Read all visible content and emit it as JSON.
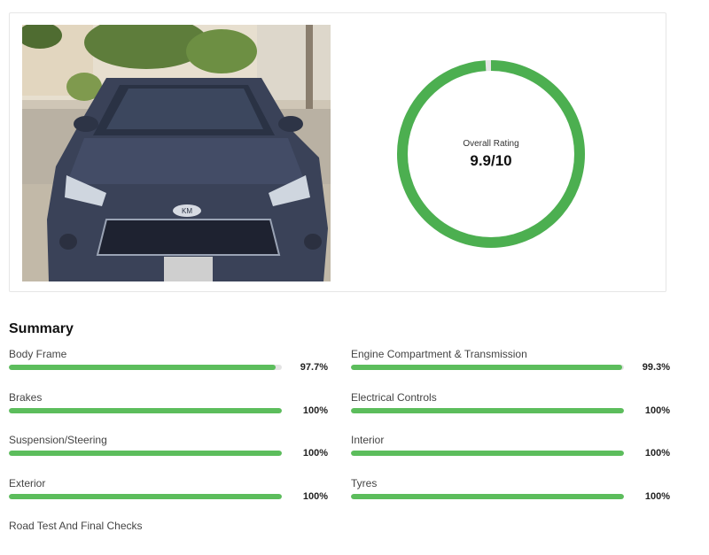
{
  "vehicle_photo": {
    "alt": "Vehicle photo",
    "badge": "KM"
  },
  "rating": {
    "label": "Overall Rating",
    "value": "9.9/10",
    "fraction": 0.99,
    "color": "#4caf50"
  },
  "summary": {
    "title": "Summary",
    "items": [
      {
        "label": "Body Frame",
        "percent": "97.7%",
        "value": 97.7
      },
      {
        "label": "Engine Compartment & Transmission",
        "percent": "99.3%",
        "value": 99.3
      },
      {
        "label": "Brakes",
        "percent": "100%",
        "value": 100
      },
      {
        "label": "Electrical Controls",
        "percent": "100%",
        "value": 100
      },
      {
        "label": "Suspension/Steering",
        "percent": "100%",
        "value": 100
      },
      {
        "label": "Interior",
        "percent": "100%",
        "value": 100
      },
      {
        "label": "Exterior",
        "percent": "100%",
        "value": 100
      },
      {
        "label": "Tyres",
        "percent": "100%",
        "value": 100
      },
      {
        "label": "Road Test And Final Checks",
        "percent": "",
        "value": null
      }
    ]
  },
  "colors": {
    "bar": "#5cbd5c",
    "track": "#e3e3e3"
  }
}
